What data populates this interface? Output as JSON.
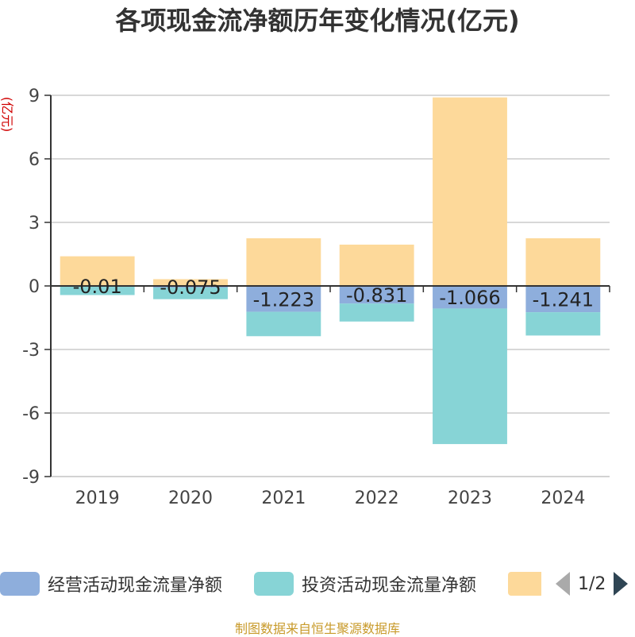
{
  "chart_data": {
    "type": "bar",
    "stacked": true,
    "title": "各项现金流净额历年变化情况(亿元)",
    "ylabel": "(亿元)",
    "categories": [
      "2019",
      "2020",
      "2021",
      "2022",
      "2023",
      "2024"
    ],
    "yticks": [
      9,
      6,
      3,
      0,
      -3,
      -6,
      -9
    ],
    "ylim": [
      -9,
      9
    ],
    "series": [
      {
        "name": "经营活动现金流量净额",
        "color": "#8eaedc",
        "values": [
          -0.01,
          -0.075,
          -1.223,
          -0.831,
          -1.066,
          -1.241
        ],
        "labels": [
          "-0.01",
          "-0.075",
          "-1.223",
          "-0.831",
          "-1.066",
          "-1.241"
        ]
      },
      {
        "name": "投资活动现金流量净额",
        "color": "#87d4d6",
        "values": [
          -0.42,
          -0.55,
          -1.15,
          -0.85,
          -6.4,
          -1.1
        ]
      },
      {
        "name": "",
        "color": "#fdd99a",
        "values": [
          1.4,
          0.32,
          2.25,
          1.95,
          8.9,
          2.25
        ]
      }
    ]
  },
  "legend": {
    "items": [
      {
        "label": "经营活动现金流量净额",
        "color": "#8eaedc"
      },
      {
        "label": "投资活动现金流量净额",
        "color": "#87d4d6"
      },
      {
        "label": "",
        "color": "#fdd99a"
      }
    ],
    "page": "1/2"
  },
  "source": "制图数据来自恒生聚源数据库"
}
